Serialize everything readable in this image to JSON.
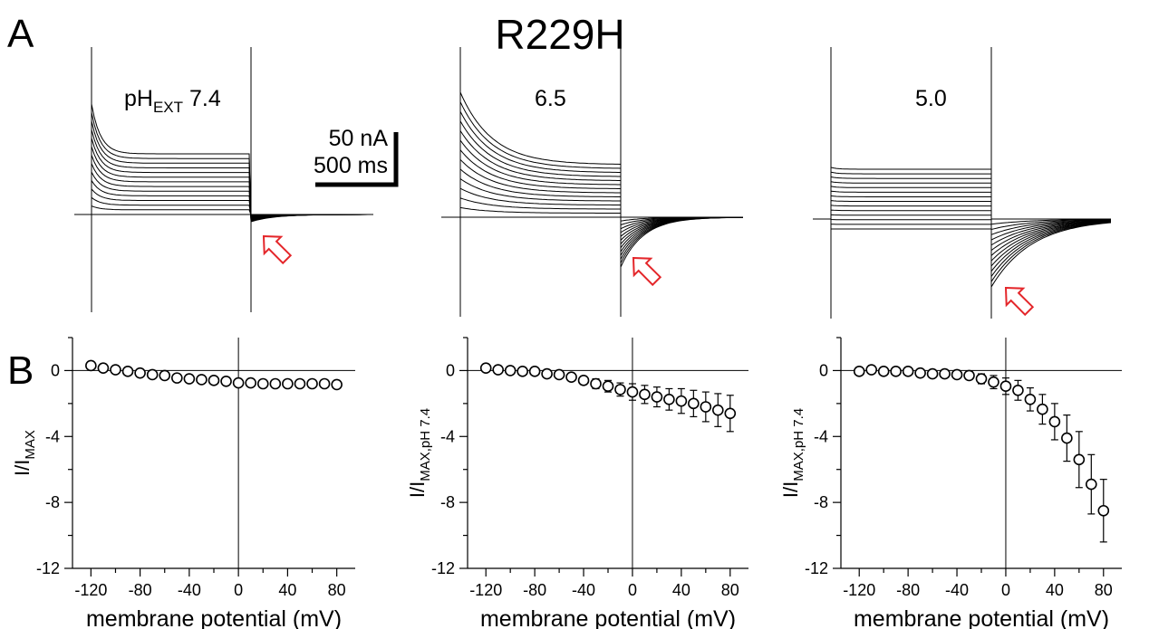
{
  "figure": {
    "panel_a_letter": "A",
    "panel_b_letter": "B",
    "title": "R229H"
  },
  "traces": [
    {
      "label_main": "pH",
      "label_sub": "EXT",
      "label_value": "7.4"
    },
    {
      "label_main": "6.5"
    },
    {
      "label_main": "5.0"
    }
  ],
  "scale_bar": {
    "current": "50 nA",
    "time": "500 ms"
  },
  "colors": {
    "ink": "#000000",
    "arrow": "#e4262a",
    "marker_fill": "#ffffff"
  },
  "icons": [
    "red-arrow-icon"
  ],
  "chart_data": [
    {
      "type": "scatter",
      "ylabel_main": "I/I",
      "ylabel_sub": "MAX",
      "xlabel": "membrane potential (mV)",
      "xlim": [
        -135,
        95
      ],
      "ylim": [
        -12,
        2
      ],
      "xticks": [
        -120,
        -80,
        -40,
        0,
        40,
        80
      ],
      "yticks": [
        0,
        -4,
        -8,
        -12
      ],
      "x": [
        -120,
        -110,
        -100,
        -90,
        -80,
        -70,
        -60,
        -50,
        -40,
        -30,
        -20,
        -10,
        0,
        10,
        20,
        30,
        40,
        50,
        60,
        70,
        80
      ],
      "y": [
        0.3,
        0.15,
        0.05,
        -0.05,
        -0.15,
        -0.25,
        -0.3,
        -0.45,
        -0.5,
        -0.55,
        -0.6,
        -0.65,
        -0.75,
        -0.75,
        -0.8,
        -0.8,
        -0.8,
        -0.8,
        -0.8,
        -0.8,
        -0.85
      ],
      "err": [
        0.1,
        0.1,
        0.1,
        0.1,
        0.1,
        0.1,
        0.1,
        0.1,
        0.1,
        0.1,
        0.1,
        0.1,
        0.12,
        0.12,
        0.12,
        0.12,
        0.12,
        0.12,
        0.12,
        0.12,
        0.15
      ]
    },
    {
      "type": "scatter",
      "ylabel_main": "I/I",
      "ylabel_sub": "MAX,pH 7.4",
      "xlabel": "membrane potential (mV)",
      "xlim": [
        -135,
        95
      ],
      "ylim": [
        -12,
        2
      ],
      "xticks": [
        -120,
        -80,
        -40,
        0,
        40,
        80
      ],
      "yticks": [
        0,
        -4,
        -8,
        -12
      ],
      "x": [
        -120,
        -110,
        -100,
        -90,
        -80,
        -70,
        -60,
        -50,
        -40,
        -30,
        -20,
        -10,
        0,
        10,
        20,
        30,
        40,
        50,
        60,
        70,
        80
      ],
      "y": [
        0.15,
        0.05,
        0.0,
        -0.05,
        -0.05,
        -0.2,
        -0.25,
        -0.4,
        -0.6,
        -0.8,
        -0.95,
        -1.15,
        -1.3,
        -1.45,
        -1.6,
        -1.75,
        -1.85,
        -2.0,
        -2.2,
        -2.4,
        -2.6
      ],
      "err": [
        0.1,
        0.1,
        0.1,
        0.1,
        0.1,
        0.15,
        0.15,
        0.2,
        0.25,
        0.3,
        0.35,
        0.4,
        0.5,
        0.55,
        0.6,
        0.65,
        0.75,
        0.8,
        0.9,
        1.0,
        1.1
      ]
    },
    {
      "type": "scatter",
      "ylabel_main": "I/I",
      "ylabel_sub": "MAX,pH 7.4",
      "xlabel": "membrane potential (mV)",
      "xlim": [
        -135,
        95
      ],
      "ylim": [
        -12,
        2
      ],
      "xticks": [
        -120,
        -80,
        -40,
        0,
        40,
        80
      ],
      "yticks": [
        0,
        -4,
        -8,
        -12
      ],
      "x": [
        -120,
        -110,
        -100,
        -90,
        -80,
        -70,
        -60,
        -50,
        -40,
        -30,
        -20,
        -10,
        0,
        10,
        20,
        30,
        40,
        50,
        60,
        70,
        80
      ],
      "y": [
        -0.05,
        0.05,
        -0.05,
        -0.05,
        -0.05,
        -0.15,
        -0.2,
        -0.2,
        -0.25,
        -0.3,
        -0.5,
        -0.7,
        -0.95,
        -1.2,
        -1.75,
        -2.35,
        -3.1,
        -4.1,
        -5.4,
        -6.9,
        -8.5
      ],
      "err": [
        0.1,
        0.1,
        0.1,
        0.1,
        0.1,
        0.15,
        0.15,
        0.2,
        0.2,
        0.25,
        0.3,
        0.4,
        0.5,
        0.6,
        0.7,
        0.9,
        1.1,
        1.4,
        1.7,
        1.8,
        1.9
      ]
    }
  ]
}
